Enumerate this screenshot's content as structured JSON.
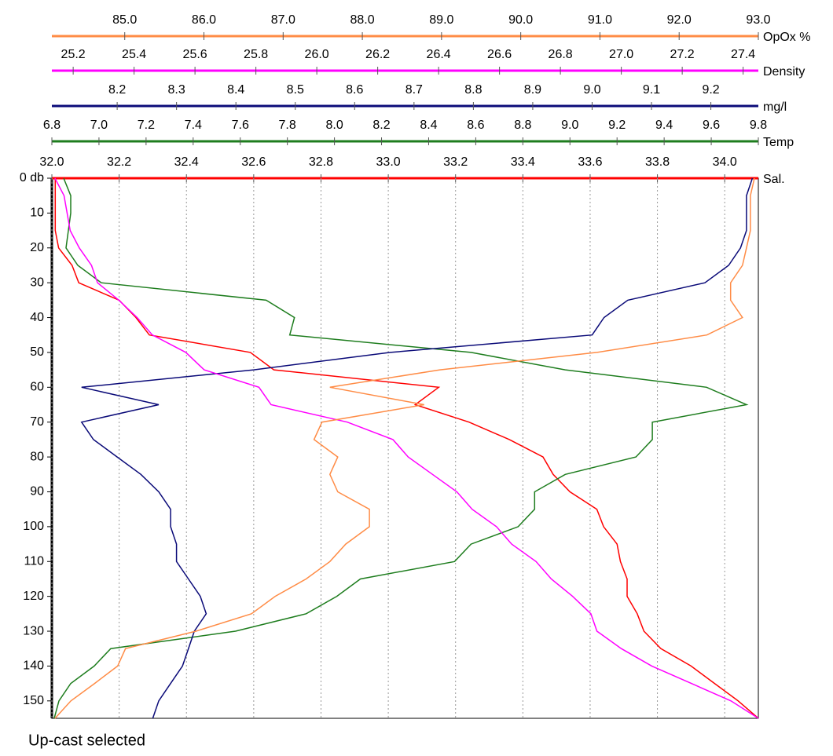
{
  "chart_data": {
    "type": "line",
    "grid": true,
    "ylim": [
      0,
      155
    ],
    "yticks": [
      {
        "value": 0,
        "label": "0 db"
      },
      10,
      20,
      30,
      40,
      50,
      60,
      70,
      80,
      90,
      100,
      110,
      120,
      130,
      140,
      150
    ],
    "x": [
      0,
      5,
      10,
      15,
      20,
      25,
      30,
      35,
      40,
      45,
      50,
      55,
      60,
      65,
      70,
      75,
      80,
      85,
      90,
      95,
      100,
      105,
      110,
      115,
      120,
      125,
      130,
      135,
      140,
      145,
      150,
      155
    ],
    "series": [
      {
        "name": "Sal.",
        "color": "#ff0000",
        "xlim": [
          32.0,
          34.1
        ],
        "xticks": [
          {
            "value": 32.0,
            "label": "32.0"
          },
          32.2,
          32.4,
          32.6,
          32.8,
          {
            "value": 33.0,
            "label": "33.0"
          },
          33.2,
          33.4,
          33.6,
          33.8,
          {
            "value": 34.0,
            "label": "34.0"
          }
        ],
        "values": [
          32.01,
          32.01,
          32.01,
          32.01,
          32.02,
          32.06,
          32.08,
          32.2,
          32.25,
          32.29,
          32.59,
          32.66,
          33.15,
          33.08,
          33.24,
          33.36,
          33.46,
          33.49,
          33.54,
          33.62,
          33.64,
          33.68,
          33.69,
          33.71,
          33.71,
          33.74,
          33.76,
          33.81,
          33.9,
          33.97,
          34.04,
          34.1
        ]
      },
      {
        "name": "Temp",
        "color": "#1e7d1e",
        "xlim": [
          6.8,
          9.8
        ],
        "xticks": [
          6.8,
          {
            "value": 7.0,
            "label": "7.0"
          },
          7.2,
          7.4,
          7.6,
          7.8,
          {
            "value": 8.0,
            "label": "8.0"
          },
          8.2,
          8.4,
          8.6,
          8.8,
          {
            "value": 9.0,
            "label": "9.0"
          },
          9.2,
          9.4,
          9.6,
          9.8
        ],
        "values": [
          6.85,
          6.88,
          6.88,
          6.87,
          6.86,
          6.91,
          7.01,
          7.71,
          7.83,
          7.81,
          8.58,
          8.98,
          9.58,
          9.75,
          9.35,
          9.35,
          9.28,
          8.98,
          8.85,
          8.85,
          8.78,
          8.58,
          8.51,
          8.11,
          8.01,
          7.88,
          7.58,
          7.05,
          6.98,
          6.88,
          6.83,
          6.81
        ]
      },
      {
        "name": "mg/l",
        "color": "#0a0a78",
        "xlim": [
          8.09,
          9.28
        ],
        "xticks": [
          8.2,
          8.3,
          8.4,
          8.5,
          8.6,
          8.7,
          8.8,
          8.9,
          {
            "value": 9.0,
            "label": "9.0"
          },
          9.1,
          9.2
        ],
        "values": [
          9.27,
          9.26,
          9.26,
          9.26,
          9.25,
          9.23,
          9.19,
          9.06,
          9.02,
          9.0,
          8.66,
          8.43,
          8.14,
          8.27,
          8.14,
          8.16,
          8.2,
          8.24,
          8.27,
          8.29,
          8.29,
          8.3,
          8.3,
          8.32,
          8.34,
          8.35,
          8.33,
          8.32,
          8.31,
          8.29,
          8.27,
          8.26
        ]
      },
      {
        "name": "Density",
        "color": "#ff00ff",
        "xlim": [
          25.13,
          27.45
        ],
        "xticks": [
          25.2,
          25.4,
          25.6,
          25.8,
          {
            "value": 26.0,
            "label": "26.0"
          },
          26.2,
          26.4,
          26.6,
          26.8,
          {
            "value": 27.0,
            "label": "27.0"
          },
          27.2,
          27.4
        ],
        "values": [
          25.14,
          25.17,
          25.18,
          25.19,
          25.22,
          25.26,
          25.28,
          25.35,
          25.41,
          25.46,
          25.57,
          25.63,
          25.81,
          25.85,
          26.1,
          26.25,
          26.3,
          26.38,
          26.46,
          26.51,
          26.59,
          26.64,
          26.72,
          26.77,
          26.84,
          26.9,
          26.92,
          27.0,
          27.1,
          27.23,
          27.36,
          27.45
        ]
      },
      {
        "name": "OpOx %",
        "color": "#ff8c46",
        "xlim": [
          84.08,
          93.0
        ],
        "xticks": [
          {
            "value": 85,
            "label": "85.0"
          },
          {
            "value": 86,
            "label": "86.0"
          },
          {
            "value": 87,
            "label": "87.0"
          },
          {
            "value": 88,
            "label": "88.0"
          },
          {
            "value": 89,
            "label": "89.0"
          },
          {
            "value": 90,
            "label": "90.0"
          },
          {
            "value": 91,
            "label": "91.0"
          },
          {
            "value": 92,
            "label": "92.0"
          },
          {
            "value": 93,
            "label": "93.0"
          }
        ],
        "values": [
          92.95,
          92.9,
          92.9,
          92.9,
          92.85,
          92.8,
          92.65,
          92.65,
          92.8,
          92.35,
          90.96,
          88.98,
          87.59,
          88.78,
          87.49,
          87.39,
          87.69,
          87.59,
          87.69,
          88.09,
          88.09,
          87.79,
          87.59,
          87.29,
          86.9,
          86.6,
          85.9,
          85.01,
          84.91,
          84.62,
          84.32,
          84.12
        ]
      }
    ]
  },
  "status": "Up-cast selected"
}
